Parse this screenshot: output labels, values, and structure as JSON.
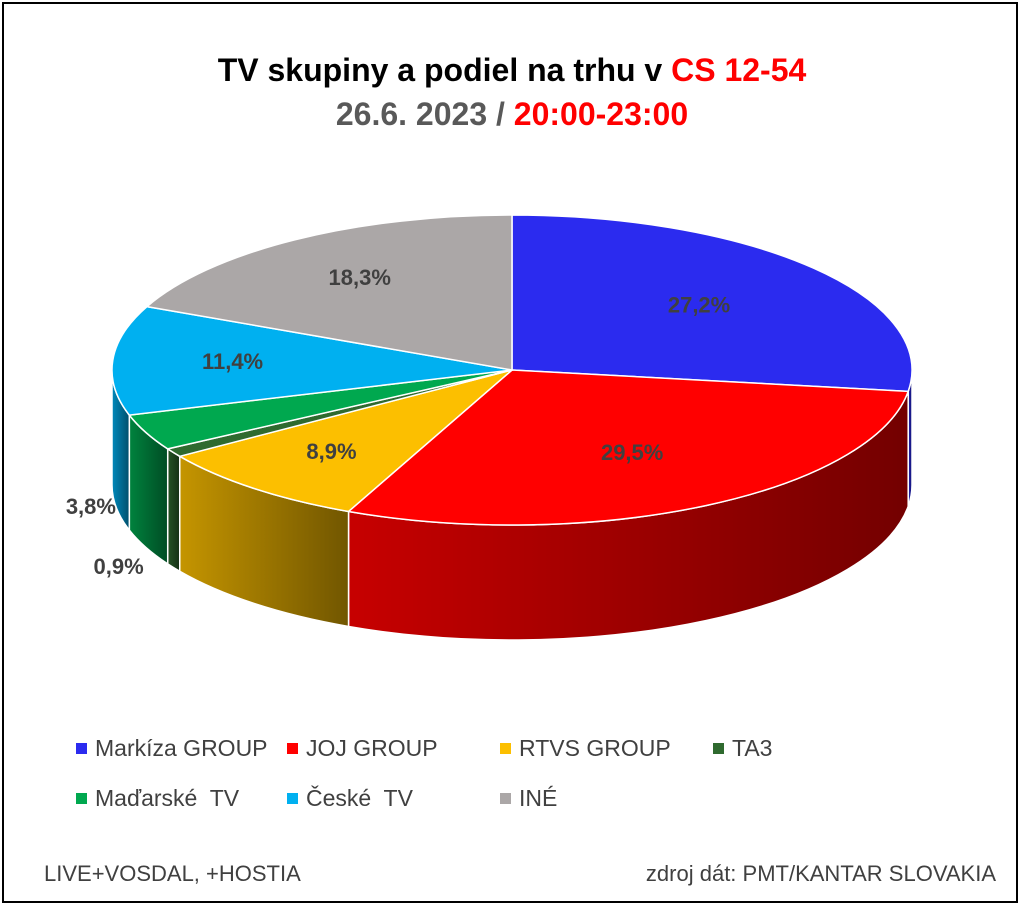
{
  "title": {
    "line1": "TV skupiny a podiel na trhu v",
    "line1_highlight": "CS 12-54",
    "line2_date": "26.6. 2023",
    "line2_sep": " / ",
    "line2_time": "20:00-23:00"
  },
  "chart_data": {
    "type": "pie",
    "style": "3d",
    "slices": [
      {
        "name": "Markíza GROUP",
        "value": 27.2,
        "label": "27,2%",
        "color": "#2b2bef"
      },
      {
        "name": "JOJ GROUP",
        "value": 29.5,
        "label": "29,5%",
        "color": "#ff0000"
      },
      {
        "name": "RTVS GROUP",
        "value": 8.9,
        "label": "8,9%",
        "color": "#fcbf00"
      },
      {
        "name": "TA3",
        "value": 0.9,
        "label": "0,9%",
        "color": "#2f6a2f"
      },
      {
        "name": "Maďarské  TV",
        "value": 3.8,
        "label": "3,8%",
        "color": "#00a84f"
      },
      {
        "name": "České  TV",
        "value": 11.4,
        "label": "11,4%",
        "color": "#00b0f0"
      },
      {
        "name": "INÉ",
        "value": 18.3,
        "label": "18,3%",
        "color": "#aba7a7"
      }
    ],
    "legend_position": "bottom"
  },
  "footer": {
    "left": "LIVE+VOSDAL, +HOSTIA",
    "right": "zdroj dát: PMT/KANTAR SLOVAKIA"
  }
}
